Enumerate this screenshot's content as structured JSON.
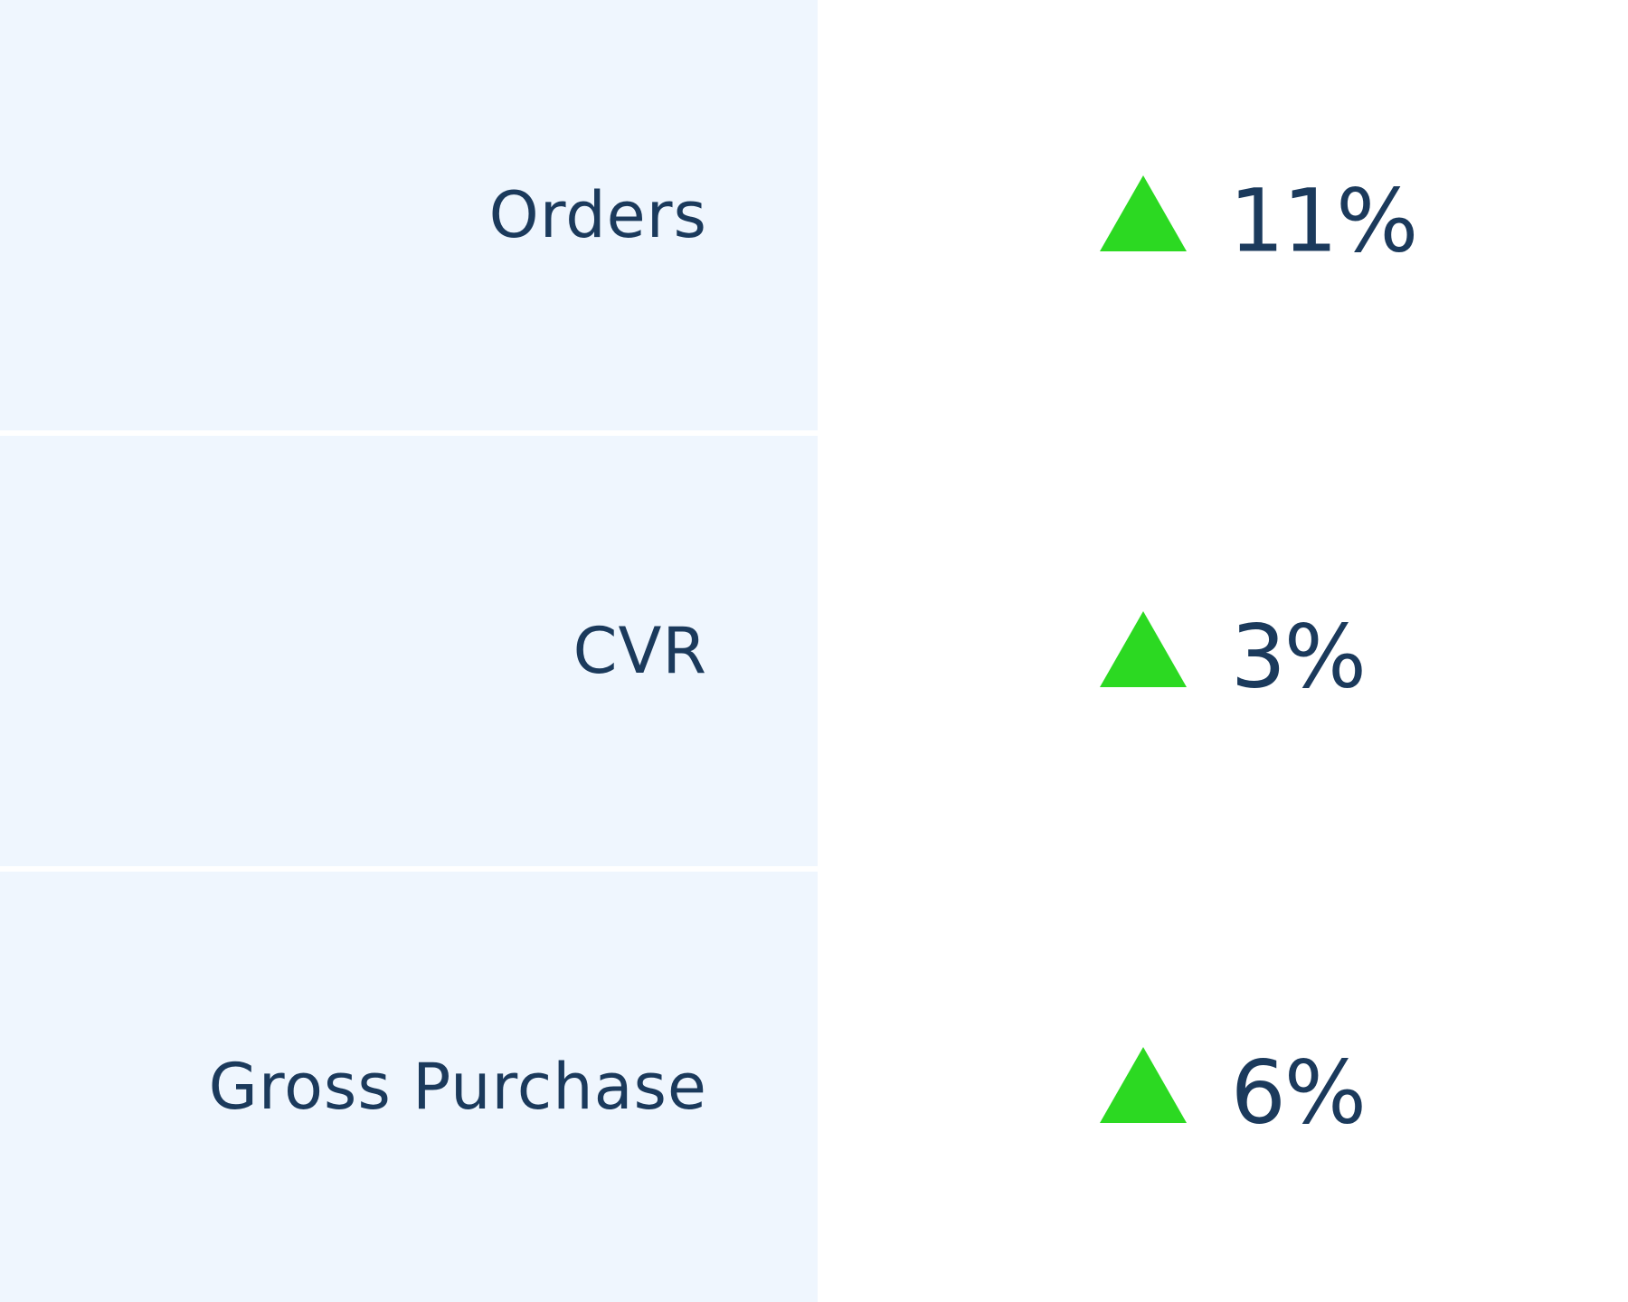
{
  "colors": {
    "label_background": "#eff6fe",
    "text": "#1b3a5c",
    "trend_up": "#2cd922"
  },
  "metrics": [
    {
      "label": "Orders",
      "trend_icon": "triangle-up-icon",
      "value": "11%"
    },
    {
      "label": "CVR",
      "trend_icon": "triangle-up-icon",
      "value": "3%"
    },
    {
      "label": "Gross Purchase",
      "trend_icon": "triangle-up-icon",
      "value": "6%"
    }
  ]
}
